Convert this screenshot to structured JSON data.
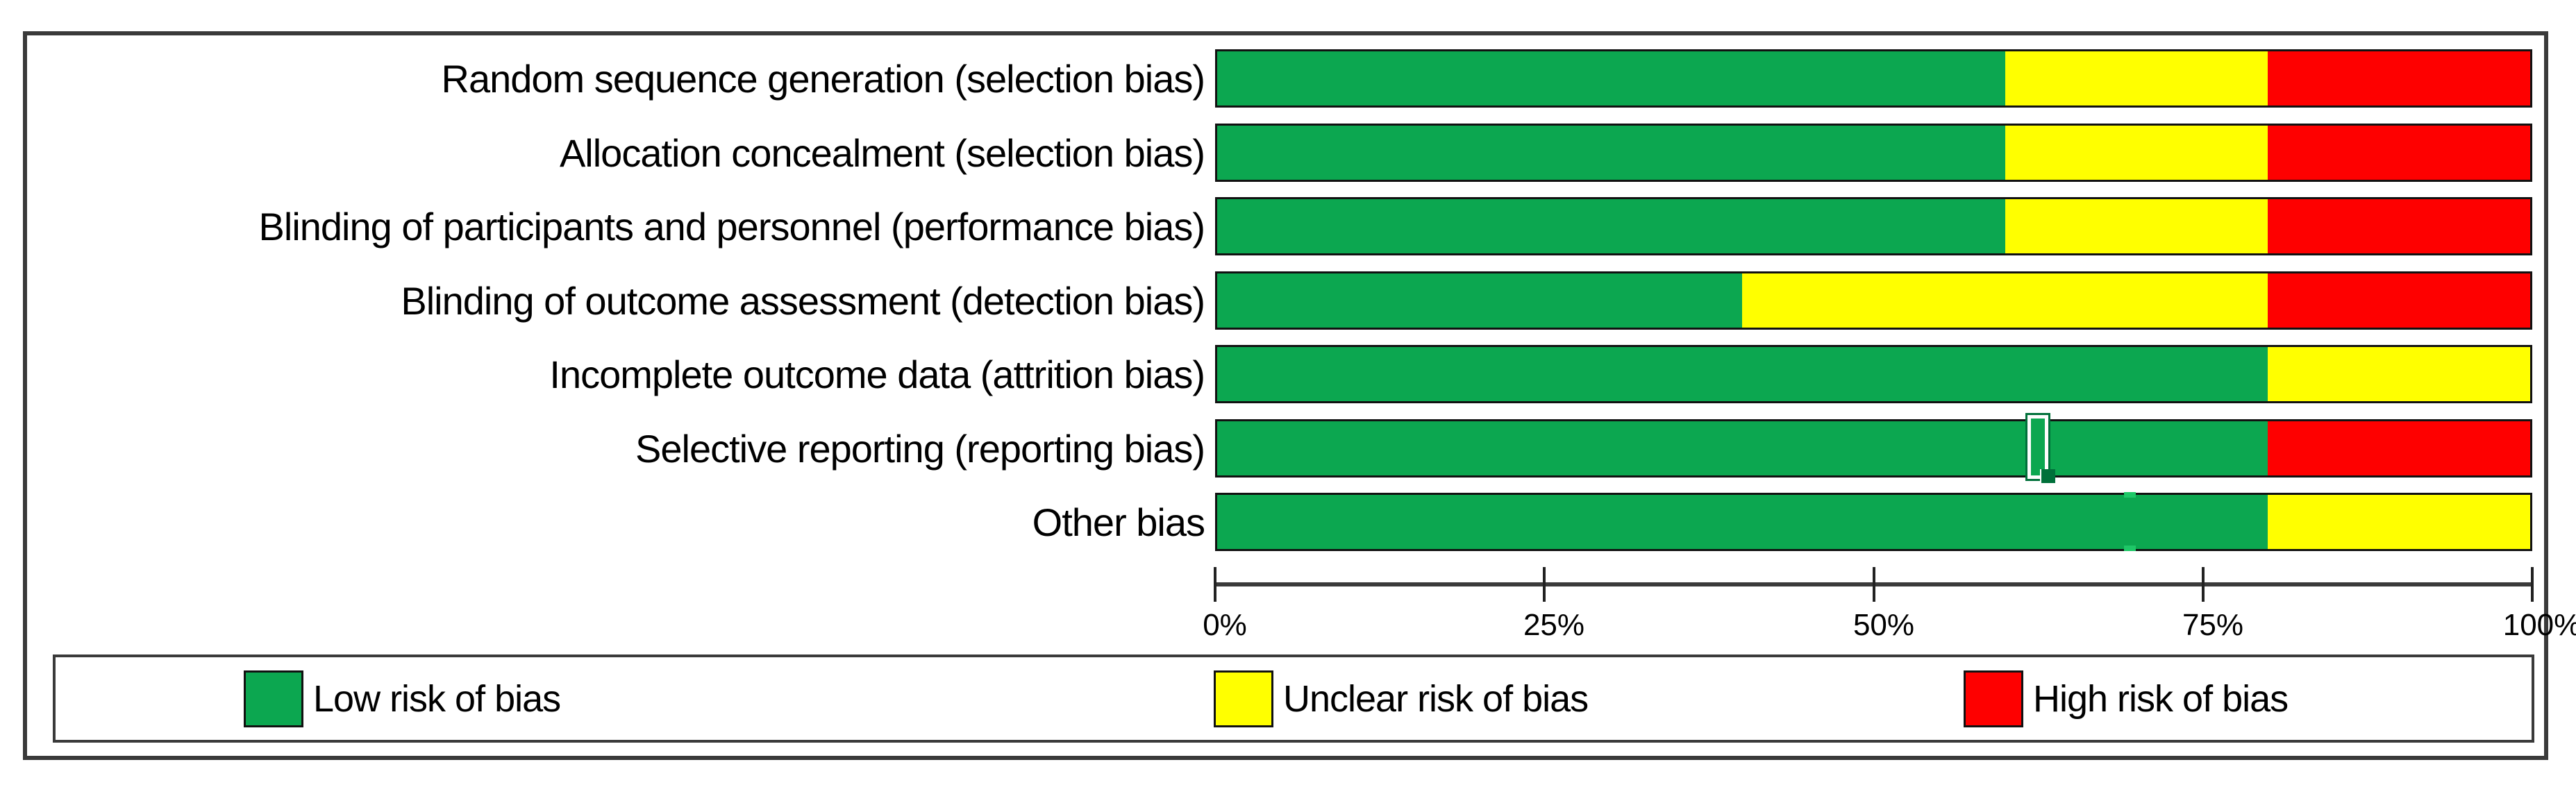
{
  "figure": {
    "name": "Risk of bias graph",
    "background": "#ffffff",
    "frame_color": "#3a3a3a"
  },
  "chart_data": {
    "type": "bar",
    "orientation": "horizontal_stacked",
    "title": "",
    "xlabel": "",
    "ylabel": "",
    "xlim": [
      0,
      100
    ],
    "x_ticks": [
      "0%",
      "25%",
      "50%",
      "75%",
      "100%"
    ],
    "grid": false,
    "legend_position": "bottom",
    "categories": [
      "Random sequence generation (selection bias)",
      "Allocation concealment (selection bias)",
      "Blinding of participants and personnel (performance bias)",
      "Blinding of outcome assessment (detection bias)",
      "Incomplete outcome data (attrition bias)",
      "Selective reporting (reporting bias)",
      "Other bias"
    ],
    "series": [
      {
        "name": "Low risk of bias",
        "key": "low",
        "color": "#0ca750",
        "values": [
          60,
          60,
          60,
          40,
          80,
          80,
          80
        ]
      },
      {
        "name": "Unclear risk of bias",
        "key": "unclear",
        "color": "#ffff00",
        "values": [
          20,
          20,
          20,
          40,
          20,
          0,
          20
        ]
      },
      {
        "name": "High risk of bias",
        "key": "high",
        "color": "#fe0000",
        "values": [
          20,
          20,
          20,
          20,
          0,
          20,
          0
        ]
      }
    ]
  },
  "artifacts": {
    "ibeam_cursor_row": "Selective reporting (reporting bias)",
    "ibeam_cursor_percent": 62,
    "border_notch_row": "Other bias",
    "border_notch_percent": 69
  }
}
